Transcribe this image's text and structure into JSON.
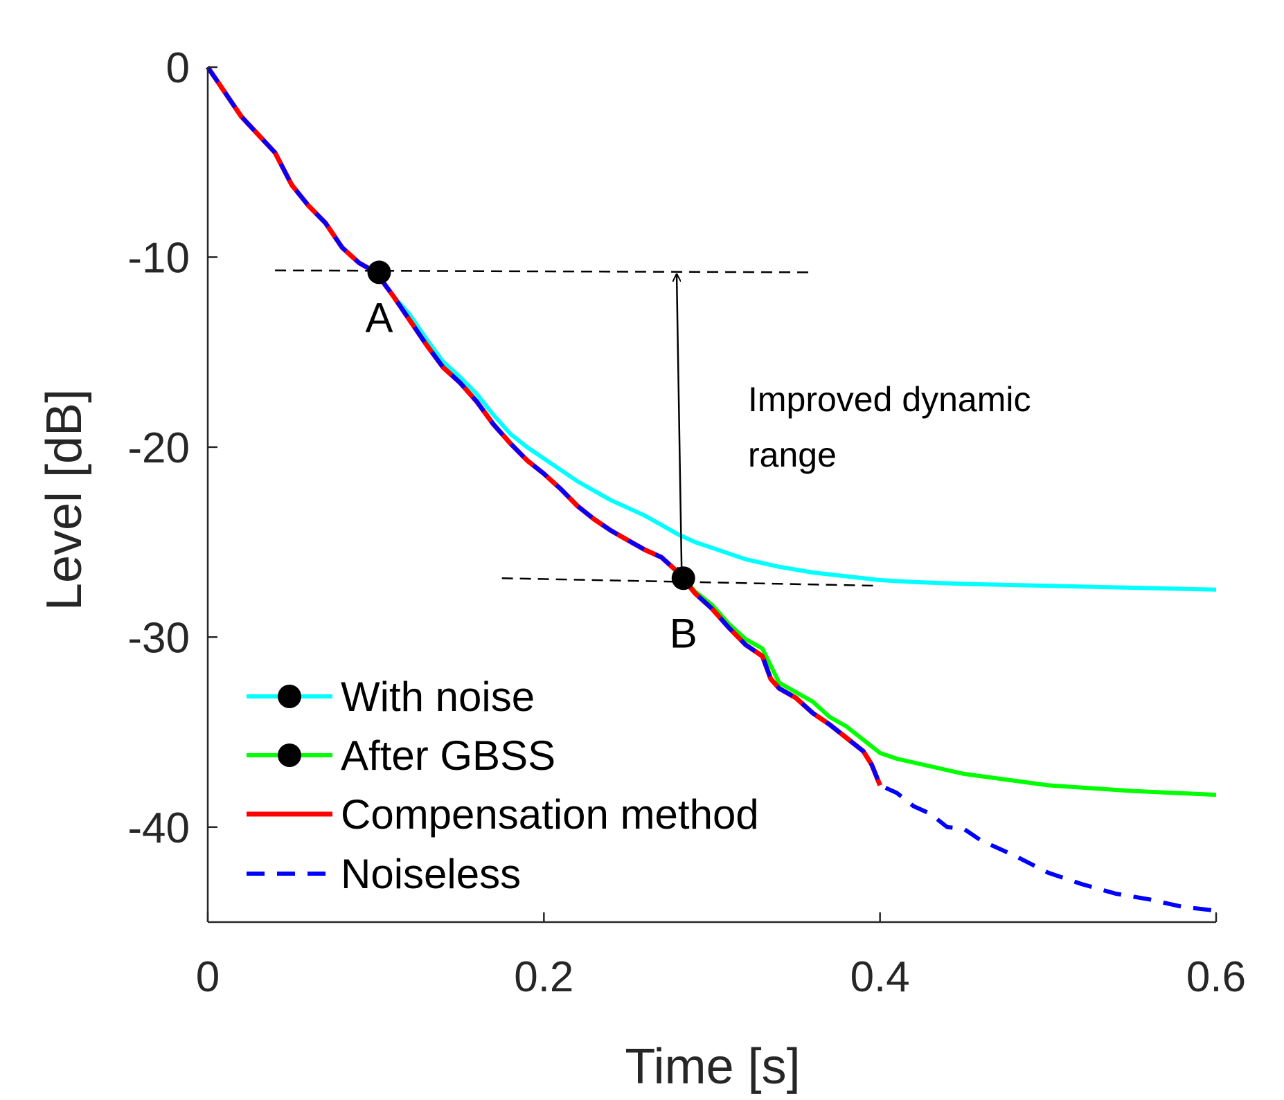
{
  "chart_data": {
    "type": "line",
    "xlabel": "Time [s]",
    "ylabel": "Level [dB]",
    "xlim": [
      0,
      0.6
    ],
    "ylim": [
      -45,
      0
    ],
    "xticks": [
      "0",
      "0.2",
      "0.4",
      "0.6"
    ],
    "xtick_values": [
      0,
      0.2,
      0.4,
      0.6
    ],
    "yticks": [
      "0",
      "-10",
      "-20",
      "-30",
      "-40"
    ],
    "ytick_values": [
      0,
      -10,
      -20,
      -30,
      -40
    ],
    "grid": false,
    "legend_position": "lower-left",
    "series": [
      {
        "name": "With noise",
        "color": "#00ffff",
        "style": "solid",
        "x": [
          0,
          0.02,
          0.04,
          0.05,
          0.06,
          0.07,
          0.08,
          0.09,
          0.1,
          0.11,
          0.12,
          0.13,
          0.14,
          0.15,
          0.16,
          0.17,
          0.18,
          0.19,
          0.2,
          0.21,
          0.22,
          0.23,
          0.24,
          0.25,
          0.26,
          0.27,
          0.28,
          0.29,
          0.3,
          0.32,
          0.34,
          0.36,
          0.38,
          0.4,
          0.42,
          0.45,
          0.5,
          0.55,
          0.6
        ],
        "y": [
          0,
          -2.6,
          -4.5,
          -6.2,
          -7.3,
          -8.2,
          -9.5,
          -10.3,
          -10.8,
          -12.0,
          -13.0,
          -14.3,
          -15.5,
          -16.3,
          -17.2,
          -18.3,
          -19.3,
          -20.0,
          -20.6,
          -21.2,
          -21.8,
          -22.3,
          -22.8,
          -23.2,
          -23.6,
          -24.1,
          -24.6,
          -25.0,
          -25.3,
          -25.9,
          -26.3,
          -26.6,
          -26.8,
          -27.0,
          -27.1,
          -27.2,
          -27.3,
          -27.4,
          -27.5
        ]
      },
      {
        "name": "After GBSS",
        "color": "#00ff00",
        "style": "solid",
        "x": [
          0.28,
          0.29,
          0.3,
          0.31,
          0.32,
          0.33,
          0.34,
          0.35,
          0.36,
          0.37,
          0.38,
          0.39,
          0.4,
          0.41,
          0.42,
          0.45,
          0.5,
          0.55,
          0.6
        ],
        "y": [
          -26.6,
          -27.6,
          -28.3,
          -29.3,
          -30.1,
          -30.6,
          -32.4,
          -32.9,
          -33.4,
          -34.2,
          -34.7,
          -35.4,
          -36.1,
          -36.4,
          -36.6,
          -37.2,
          -37.8,
          -38.1,
          -38.3
        ]
      },
      {
        "name": "Compensation method",
        "color": "#ff0000",
        "style": "solid",
        "x": [
          0,
          0.02,
          0.04,
          0.05,
          0.06,
          0.07,
          0.08,
          0.09,
          0.1,
          0.11,
          0.12,
          0.13,
          0.14,
          0.15,
          0.16,
          0.17,
          0.18,
          0.19,
          0.2,
          0.21,
          0.22,
          0.23,
          0.24,
          0.25,
          0.26,
          0.27,
          0.28,
          0.29,
          0.3,
          0.31,
          0.32,
          0.33,
          0.335,
          0.34,
          0.35,
          0.36,
          0.37,
          0.38,
          0.39,
          0.395,
          0.4
        ],
        "y": [
          0,
          -2.6,
          -4.5,
          -6.2,
          -7.3,
          -8.2,
          -9.5,
          -10.3,
          -10.8,
          -12.0,
          -13.3,
          -14.6,
          -15.8,
          -16.6,
          -17.6,
          -18.8,
          -19.8,
          -20.7,
          -21.4,
          -22.2,
          -23.1,
          -23.8,
          -24.4,
          -24.9,
          -25.4,
          -25.8,
          -26.6,
          -27.7,
          -28.5,
          -29.5,
          -30.4,
          -31.0,
          -32.2,
          -32.7,
          -33.2,
          -34.0,
          -34.6,
          -35.3,
          -36.0,
          -36.7,
          -37.8
        ]
      },
      {
        "name": "Noiseless",
        "color": "#0000ff",
        "style": "dashed",
        "x": [
          0,
          0.02,
          0.04,
          0.05,
          0.06,
          0.07,
          0.08,
          0.09,
          0.1,
          0.11,
          0.12,
          0.13,
          0.14,
          0.15,
          0.16,
          0.17,
          0.18,
          0.19,
          0.2,
          0.21,
          0.22,
          0.23,
          0.24,
          0.25,
          0.26,
          0.27,
          0.28,
          0.29,
          0.3,
          0.31,
          0.32,
          0.33,
          0.335,
          0.34,
          0.35,
          0.36,
          0.37,
          0.38,
          0.39,
          0.395,
          0.4,
          0.41,
          0.42,
          0.43,
          0.44,
          0.45,
          0.46,
          0.48,
          0.5,
          0.52,
          0.54,
          0.56,
          0.58,
          0.6
        ],
        "y": [
          0,
          -2.6,
          -4.5,
          -6.2,
          -7.3,
          -8.2,
          -9.5,
          -10.3,
          -10.8,
          -12.0,
          -13.3,
          -14.6,
          -15.8,
          -16.6,
          -17.6,
          -18.8,
          -19.8,
          -20.7,
          -21.4,
          -22.2,
          -23.1,
          -23.8,
          -24.4,
          -24.9,
          -25.4,
          -25.8,
          -26.6,
          -27.7,
          -28.5,
          -29.5,
          -30.4,
          -31.0,
          -32.2,
          -32.7,
          -33.2,
          -34.0,
          -34.6,
          -35.3,
          -36.0,
          -36.7,
          -37.8,
          -38.2,
          -38.9,
          -39.3,
          -40.0,
          -40.1,
          -40.7,
          -41.5,
          -42.4,
          -43.0,
          -43.5,
          -43.8,
          -44.2,
          -44.4
        ]
      }
    ],
    "annotations": {
      "point_a": {
        "label": "A",
        "x": 0.102,
        "y": -10.8
      },
      "point_b": {
        "label": "B",
        "x": 0.283,
        "y": -26.9
      },
      "ref_line_a": {
        "x1": 0.04,
        "x2": 0.36,
        "y1": -10.7,
        "y2": -10.8
      },
      "ref_line_b": {
        "x1": 0.175,
        "x2": 0.4,
        "y1": -26.9,
        "y2": -27.3
      },
      "arrow": {
        "x1": 0.279,
        "x2": 0.282,
        "y1": -10.9,
        "y2": -26.7
      },
      "note_line1": "Improved dynamic",
      "note_line2": "range"
    }
  }
}
